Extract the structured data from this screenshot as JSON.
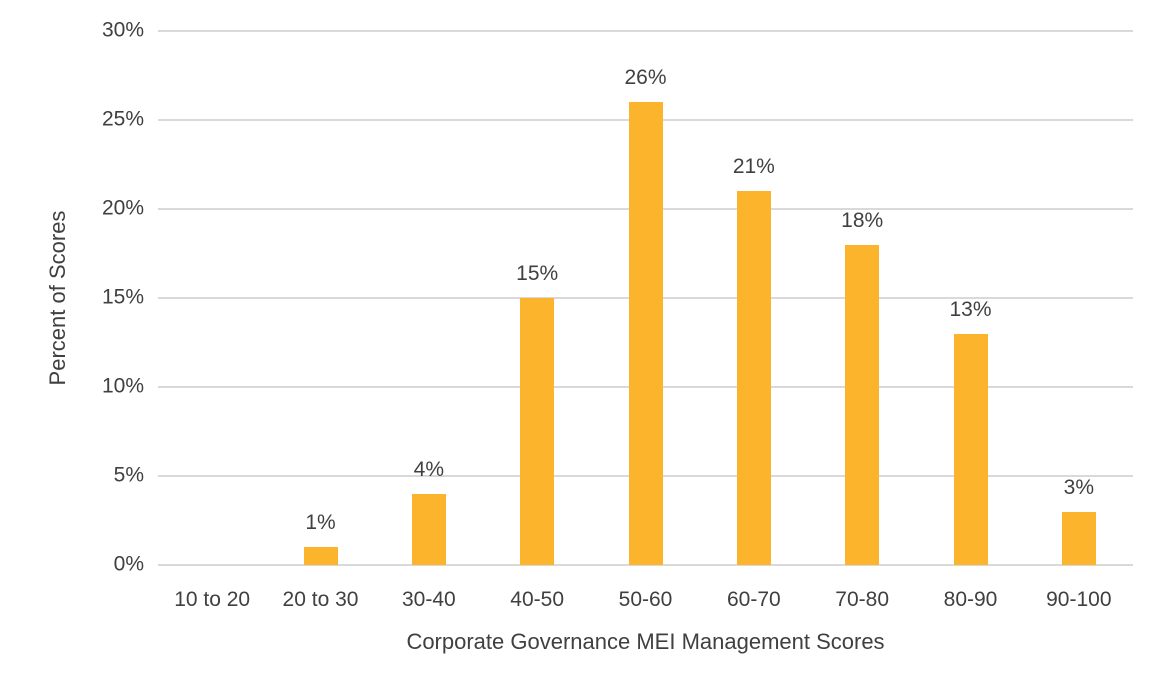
{
  "chart_data": {
    "type": "bar",
    "categories": [
      "10 to 20",
      "20 to 30",
      "30-40",
      "40-50",
      "50-60",
      "60-70",
      "70-80",
      "80-90",
      "90-100"
    ],
    "values": [
      0,
      1,
      4,
      15,
      26,
      21,
      18,
      13,
      3
    ],
    "data_labels": [
      "",
      "1%",
      "4%",
      "15%",
      "26%",
      "21%",
      "18%",
      "13%",
      "3%"
    ],
    "title": "",
    "xlabel": "Corporate Governance MEI Management Scores",
    "ylabel": "Percent of Scores",
    "ylim": [
      0,
      30
    ],
    "ytick_step": 5,
    "ytick_labels": [
      "0%",
      "5%",
      "10%",
      "15%",
      "20%",
      "25%",
      "30%"
    ],
    "grid": "horizontal",
    "legend": "none",
    "bar_color": "#FBB42C",
    "gridline_color": "#D9D9D9",
    "text_color": "#404040"
  }
}
